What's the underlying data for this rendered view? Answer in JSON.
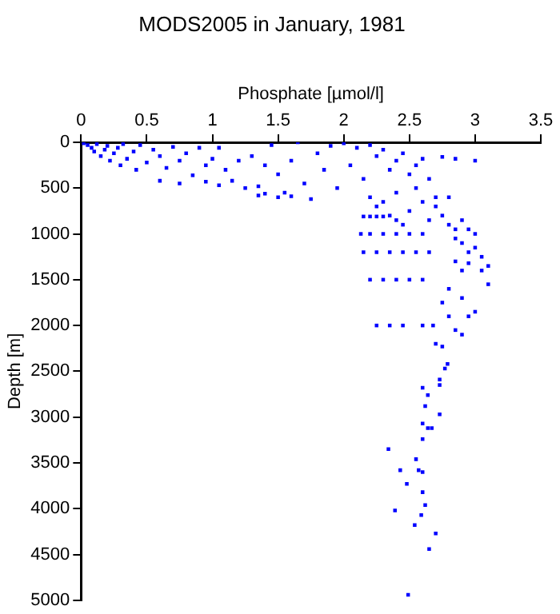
{
  "chart_data": {
    "type": "scatter",
    "title": "MODS2005 in January, 1981",
    "xlabel": "Phosphate [µmol/l]",
    "ylabel": "Depth [m]",
    "x": [
      0.02,
      0.05,
      0.08,
      0.1,
      0.12,
      0.15,
      0.18,
      0.2,
      0.22,
      0.25,
      0.28,
      0.3,
      0.32,
      0.35,
      0.4,
      0.42,
      0.45,
      0.5,
      0.55,
      0.6,
      0.65,
      0.7,
      0.75,
      0.8,
      0.85,
      0.9,
      0.95,
      1.0,
      1.05,
      1.1,
      1.15,
      1.2,
      1.25,
      1.3,
      1.35,
      1.4,
      1.45,
      1.5,
      1.55,
      1.6,
      1.65,
      1.7,
      1.75,
      1.8,
      1.85,
      1.9,
      1.95,
      2.0,
      2.05,
      2.1,
      2.15,
      2.2,
      2.25,
      2.3,
      2.35,
      2.4,
      2.45,
      2.5,
      2.55,
      2.6,
      2.65,
      2.7,
      2.75,
      2.85,
      0.6,
      0.75,
      0.95,
      1.05,
      1.4,
      1.5,
      1.6,
      1.35,
      2.2,
      2.25,
      2.3,
      2.35,
      2.4,
      2.45,
      2.5,
      2.55,
      2.6,
      2.65,
      2.7,
      2.75,
      2.8,
      2.85,
      2.15,
      2.2,
      2.25,
      2.3,
      2.4,
      2.13,
      2.2,
      2.3,
      2.4,
      2.5,
      2.6,
      2.15,
      2.25,
      2.35,
      2.45,
      2.55,
      2.65,
      2.2,
      2.3,
      2.4,
      2.5,
      2.6,
      2.25,
      2.35,
      2.45,
      2.6,
      2.68,
      2.8,
      2.9,
      2.95,
      2.85,
      3.0,
      2.9,
      3.0,
      3.05,
      2.95,
      2.85,
      3.1,
      2.9,
      2.95,
      3.05,
      3.1,
      2.8,
      2.9,
      2.75,
      2.8,
      3.0,
      2.85,
      2.9,
      2.95,
      3.0,
      2.7,
      2.75,
      2.79,
      2.77,
      2.73,
      2.73,
      2.6,
      2.64,
      2.62,
      2.73,
      2.6,
      2.64,
      2.67,
      2.6,
      2.34,
      2.55,
      2.43,
      2.57,
      2.6,
      2.48,
      2.6,
      2.62,
      2.39,
      2.59,
      2.54,
      2.7,
      2.65,
      2.49
    ],
    "values": [
      10,
      30,
      60,
      100,
      20,
      150,
      80,
      40,
      200,
      120,
      60,
      250,
      20,
      180,
      100,
      300,
      30,
      220,
      80,
      150,
      280,
      50,
      200,
      120,
      360,
      60,
      250,
      180,
      60,
      300,
      420,
      200,
      500,
      150,
      480,
      250,
      30,
      350,
      550,
      200,
      0,
      450,
      620,
      120,
      300,
      40,
      500,
      10,
      250,
      60,
      400,
      30,
      150,
      80,
      300,
      200,
      120,
      350,
      250,
      180,
      400,
      600,
      160,
      180,
      420,
      450,
      430,
      470,
      560,
      600,
      590,
      580,
      600,
      700,
      650,
      800,
      550,
      900,
      750,
      500,
      650,
      850,
      700,
      800,
      600,
      950,
      810,
      810,
      810,
      810,
      850,
      1000,
      1000,
      1000,
      1000,
      1000,
      1000,
      1200,
      1200,
      1200,
      1200,
      1200,
      1200,
      1500,
      1500,
      1500,
      1500,
      1500,
      2000,
      2000,
      2000,
      2000,
      2000,
      900,
      850,
      950,
      1050,
      1000,
      1100,
      1150,
      1250,
      1200,
      1300,
      1350,
      1400,
      1320,
      1400,
      1550,
      1600,
      1700,
      1750,
      1900,
      1850,
      2050,
      2100,
      1900,
      200,
      2200,
      2230,
      2420,
      2470,
      2590,
      2650,
      2680,
      2760,
      2880,
      2970,
      3070,
      3120,
      3120,
      3240,
      3350,
      3460,
      3580,
      3580,
      3600,
      3730,
      3820,
      3960,
      4020,
      4070,
      4180,
      4270,
      4440,
      4940
    ],
    "color": "#0000ff",
    "marker": "square",
    "grid": false,
    "legend": false,
    "xlim": [
      0,
      3.5
    ],
    "xticks": [
      0,
      0.5,
      1,
      1.5,
      2,
      2.5,
      3,
      3.5
    ],
    "ylim": [
      5000,
      0
    ],
    "yticks": [
      0,
      500,
      1000,
      1500,
      2000,
      2500,
      3000,
      3500,
      4000,
      4500,
      5000
    ]
  }
}
